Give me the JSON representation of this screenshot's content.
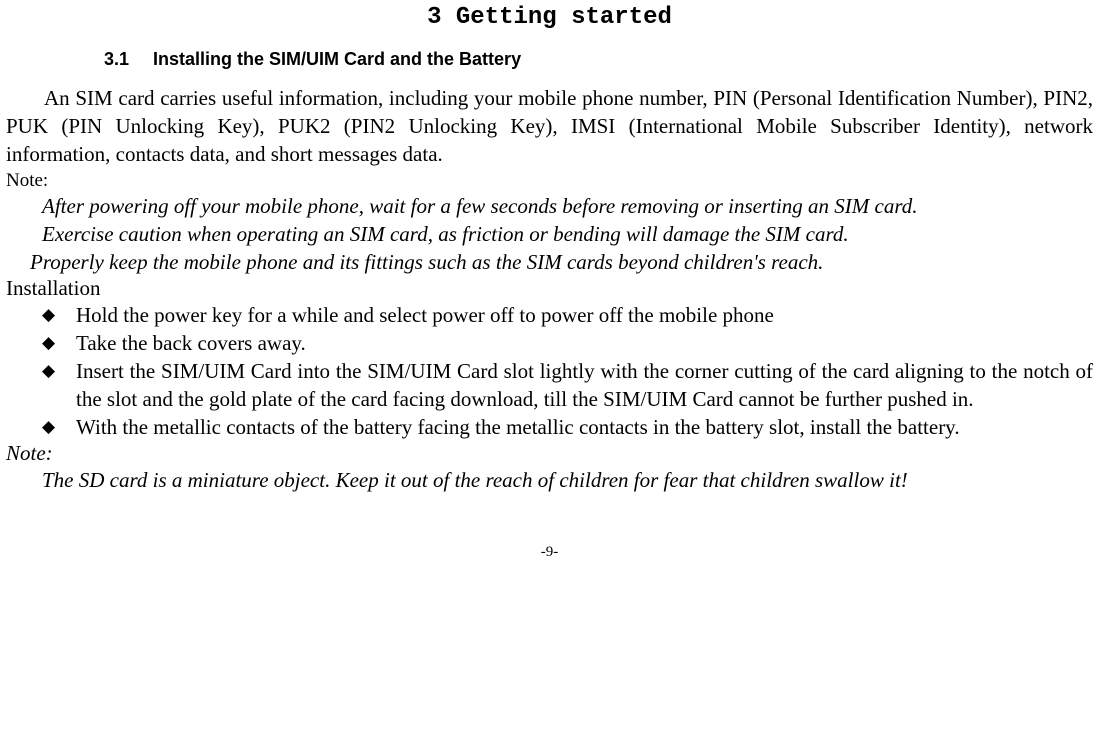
{
  "chapter_title": "3 Getting started",
  "section": {
    "number": "3.1",
    "title": "Installing the SIM/UIM Card and the Battery"
  },
  "intro_paragraph": "An SIM card carries useful information, including your mobile phone number, PIN (Personal Identification Number), PIN2, PUK (PIN Unlocking Key), PUK2 (PIN2 Unlocking Key), IMSI (International Mobile Subscriber Identity), network information, contacts data, and short messages data.",
  "note1_label": "Note:",
  "note1_lines": [
    "After powering off your mobile phone, wait for a few seconds before removing or inserting an SIM card.",
    "Exercise caution when operating an SIM card, as friction or bending will damage the SIM card."
  ],
  "note1_line3": "Properly keep the mobile phone and its fittings such as the SIM cards beyond children's reach.",
  "installation_label": "Installation",
  "install_items": [
    "Hold the power key for a while and select power off to power off the mobile phone",
    "Take the back covers away.",
    "Insert the SIM/UIM Card into the SIM/UIM Card slot lightly with the corner cutting of the card aligning to the notch of the slot and the gold plate of the card facing download, till the SIM/UIM Card cannot be further pushed in.",
    "With the metallic contacts of the battery facing the metallic contacts in the battery slot, install the battery."
  ],
  "note2_label": "Note:",
  "note2_body": "The SD card is a miniature object. Keep it out of the reach of children for fear that children swallow it!",
  "page_number": "-9-",
  "colors": {
    "background": "#ffffff",
    "text": "#000000"
  }
}
